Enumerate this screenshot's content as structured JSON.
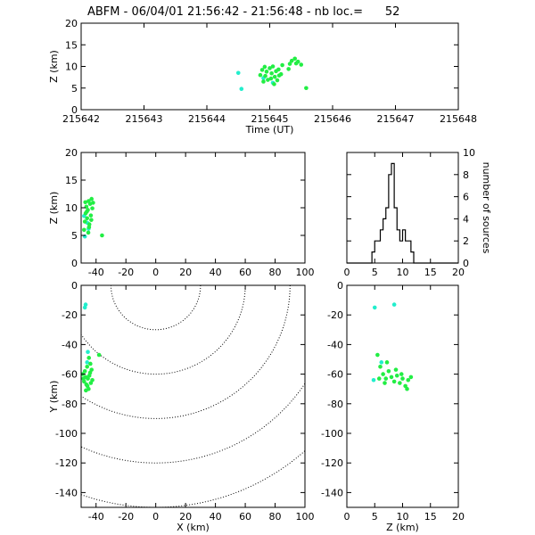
{
  "title": "ABFM - 06/04/01 21:56:42 - 21:56:48 - nb loc.=      52",
  "colors": {
    "points_primary": "#22ee44",
    "points_secondary": "#22eecc",
    "axes": "#000000",
    "background": "#ffffff"
  },
  "chart_data": [
    {
      "id": "time_height",
      "type": "scatter",
      "xlabel": "Time (UT)",
      "ylabel": "Z (km)",
      "xlim": [
        215642,
        215648
      ],
      "ylim": [
        0,
        20
      ],
      "xticks": [
        "215642",
        "215643",
        "215644",
        "215645",
        "215646",
        "215647",
        "215648"
      ],
      "yticks": [
        "0",
        "5",
        "10",
        "15",
        "20"
      ],
      "series": [
        {
          "color": "#22eecc",
          "points": [
            [
              215644.5,
              8.5
            ],
            [
              215644.55,
              4.8
            ],
            [
              215644.9,
              7.3
            ],
            [
              215645.05,
              6.2
            ]
          ]
        },
        {
          "color": "#22ee44",
          "points": [
            [
              215644.85,
              8.0
            ],
            [
              215644.88,
              9.2
            ],
            [
              215644.9,
              6.5
            ],
            [
              215644.93,
              7.8
            ],
            [
              215644.95,
              8.8
            ],
            [
              215644.97,
              6.9
            ],
            [
              215645.0,
              9.6
            ],
            [
              215645.02,
              7.2
            ],
            [
              215645.03,
              8.4
            ],
            [
              215645.05,
              10.0
            ],
            [
              215645.07,
              5.9
            ],
            [
              215645.08,
              7.6
            ],
            [
              215645.1,
              8.9
            ],
            [
              215645.12,
              6.8
            ],
            [
              215645.14,
              9.3
            ],
            [
              215645.15,
              7.9
            ],
            [
              215644.92,
              9.9
            ],
            [
              215645.18,
              8.2
            ],
            [
              215645.2,
              10.3
            ],
            [
              215645.3,
              9.4
            ],
            [
              215645.32,
              10.6
            ],
            [
              215645.35,
              11.3
            ],
            [
              215645.4,
              11.8
            ],
            [
              215645.42,
              10.7
            ],
            [
              215645.45,
              11.1
            ],
            [
              215645.5,
              10.4
            ],
            [
              215645.58,
              5.0
            ]
          ]
        }
      ]
    },
    {
      "id": "x_height",
      "type": "scatter",
      "xlabel": "",
      "ylabel": "Z (km)",
      "xlim": [
        -50,
        100
      ],
      "ylim": [
        0,
        20
      ],
      "xticks": [
        "-40",
        "-20",
        "0",
        "20",
        "40",
        "60",
        "80",
        "100"
      ],
      "yticks": [
        "0",
        "5",
        "10",
        "15",
        "20"
      ],
      "series": [
        {
          "color": "#22eecc",
          "points": [
            [
              -48,
              8.5
            ],
            [
              -47.5,
              4.8
            ],
            [
              -46,
              7.3
            ],
            [
              -45,
              6.2
            ]
          ]
        },
        {
          "color": "#22ee44",
          "points": [
            [
              -48,
              6.0
            ],
            [
              -47.5,
              7.5
            ],
            [
              -47,
              9.0
            ],
            [
              -46.5,
              10.2
            ],
            [
              -46,
              8.1
            ],
            [
              -45.5,
              9.6
            ],
            [
              -45,
              11.2
            ],
            [
              -44.5,
              7.0
            ],
            [
              -44,
              10.7
            ],
            [
              -43.5,
              8.6
            ],
            [
              -43,
              11.6
            ],
            [
              -42.5,
              9.9
            ],
            [
              -42,
              10.9
            ],
            [
              -45.2,
              5.5
            ],
            [
              -47.2,
              11.0
            ],
            [
              -44.7,
              6.5
            ],
            [
              -46.2,
              9.3
            ],
            [
              -43.2,
              7.8
            ],
            [
              -36,
              5.0
            ]
          ]
        }
      ]
    },
    {
      "id": "height_histogram",
      "type": "bar",
      "xlabel": "",
      "ylabel": "number of sources",
      "xlim": [
        0,
        20
      ],
      "ylim": [
        0,
        10
      ],
      "xticks": [
        "0",
        "5",
        "10",
        "15",
        "20"
      ],
      "yticks": [
        "0",
        "2",
        "4",
        "6",
        "8",
        "10"
      ],
      "bin_width": 0.5,
      "bins": [
        [
          4.5,
          1
        ],
        [
          5.0,
          2
        ],
        [
          5.5,
          2
        ],
        [
          6.0,
          3
        ],
        [
          6.5,
          4
        ],
        [
          7.0,
          5
        ],
        [
          7.5,
          8
        ],
        [
          8.0,
          9
        ],
        [
          8.5,
          5
        ],
        [
          9.0,
          3
        ],
        [
          9.5,
          2
        ],
        [
          10.0,
          3
        ],
        [
          10.5,
          2
        ],
        [
          11.0,
          2
        ],
        [
          11.5,
          1
        ]
      ]
    },
    {
      "id": "plan_view",
      "type": "scatter",
      "xlabel": "X (km)",
      "ylabel": "Y (km)",
      "xlim": [
        -50,
        100
      ],
      "ylim": [
        -150,
        0
      ],
      "xticks": [
        "-40",
        "-20",
        "0",
        "20",
        "40",
        "60",
        "80",
        "100"
      ],
      "yticks": [
        "0",
        "-20",
        "-40",
        "-60",
        "-80",
        "-100",
        "-120",
        "-140"
      ],
      "range_rings": {
        "center": [
          0,
          0
        ],
        "radii_km": [
          30,
          60,
          90,
          120,
          150
        ]
      },
      "series": [
        {
          "color": "#22eecc",
          "points": [
            [
              -47.5,
              -15
            ],
            [
              -47,
              -13
            ],
            [
              -45.5,
              -45
            ],
            [
              -46,
              -52
            ]
          ]
        },
        {
          "color": "#22ee44",
          "points": [
            [
              -49,
              -60
            ],
            [
              -48,
              -65
            ],
            [
              -47.5,
              -58
            ],
            [
              -47,
              -62
            ],
            [
              -46.5,
              -67
            ],
            [
              -46,
              -55
            ],
            [
              -45.5,
              -63
            ],
            [
              -45,
              -70
            ],
            [
              -44.5,
              -61
            ],
            [
              -44,
              -59
            ],
            [
              -43.5,
              -66
            ],
            [
              -43,
              -57
            ],
            [
              -42.5,
              -64
            ],
            [
              -48.5,
              -63
            ],
            [
              -46.8,
              -71
            ],
            [
              -44.8,
              -49
            ],
            [
              -43.8,
              -53
            ],
            [
              -45.8,
              -68
            ],
            [
              -38,
              -47
            ]
          ]
        }
      ]
    },
    {
      "id": "height_y",
      "type": "scatter",
      "xlabel": "Z (km)",
      "ylabel": "",
      "xlim": [
        0,
        20
      ],
      "ylim": [
        -150,
        0
      ],
      "xticks": [
        "0",
        "5",
        "10",
        "15",
        "20"
      ],
      "yticks": [
        "0",
        "-20",
        "-40",
        "-60",
        "-80",
        "-100",
        "-120",
        "-140"
      ],
      "series": [
        {
          "color": "#22eecc",
          "points": [
            [
              5,
              -15
            ],
            [
              8.5,
              -13
            ],
            [
              4.8,
              -64
            ],
            [
              6.2,
              -52
            ]
          ]
        },
        {
          "color": "#22ee44",
          "points": [
            [
              5.5,
              -47
            ],
            [
              6,
              -55
            ],
            [
              6.5,
              -60
            ],
            [
              7,
              -63
            ],
            [
              7.5,
              -58
            ],
            [
              8,
              -62
            ],
            [
              8.5,
              -65
            ],
            [
              9,
              -61
            ],
            [
              9.5,
              -66
            ],
            [
              10,
              -63
            ],
            [
              10.5,
              -68
            ],
            [
              11,
              -64
            ],
            [
              11.5,
              -62
            ],
            [
              7.2,
              -52
            ],
            [
              8.8,
              -57
            ],
            [
              9.8,
              -60
            ],
            [
              10.8,
              -70
            ],
            [
              6.8,
              -66
            ],
            [
              5.8,
              -63
            ]
          ]
        }
      ]
    }
  ]
}
